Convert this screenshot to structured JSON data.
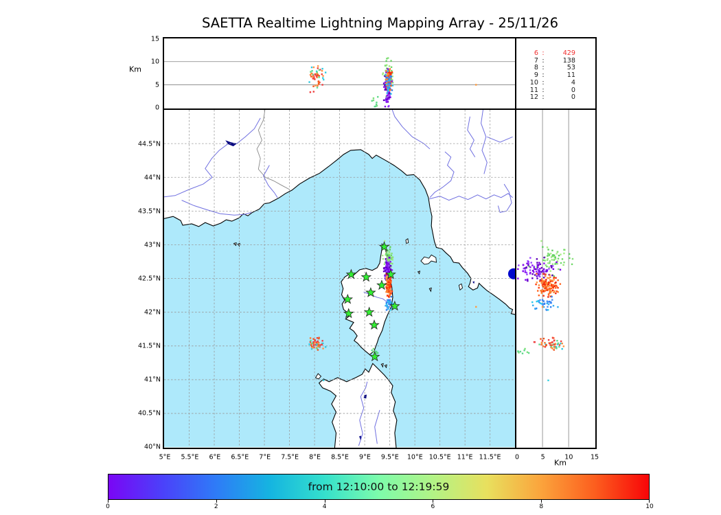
{
  "title": "SAETTA Realtime Lightning Mapping Array - 25/11/26",
  "colors": {
    "sea": "#aee9fb",
    "land": "#ffffff",
    "coastline": "#000000",
    "river": "#6f6fe0",
    "lake": "#000080",
    "country_border": "#888888",
    "grid": "#999999",
    "panel_gridline": "#808080",
    "star_fill": "#33ef33",
    "star_stroke": "#222222",
    "stats_highlight": "#f03030",
    "stats_text": "#1a1a1a",
    "edge_marker": "#0008cc"
  },
  "axes": {
    "alt_label": "Km",
    "right_alt_label": "Km",
    "alt_ticks": [
      {
        "value": 0,
        "label": "0"
      },
      {
        "value": 5,
        "label": "5"
      },
      {
        "value": 10,
        "label": "10"
      },
      {
        "value": 15,
        "label": "15"
      }
    ],
    "lon_ticks": [
      {
        "value": 5,
        "label": "5°E"
      },
      {
        "value": 5.5,
        "label": "5.5°E"
      },
      {
        "value": 6,
        "label": "6°E"
      },
      {
        "value": 6.5,
        "label": "6.5°E"
      },
      {
        "value": 7,
        "label": "7°E"
      },
      {
        "value": 7.5,
        "label": "7.5°E"
      },
      {
        "value": 8,
        "label": "8°E"
      },
      {
        "value": 8.5,
        "label": "8.5°E"
      },
      {
        "value": 9,
        "label": "9°E"
      },
      {
        "value": 9.5,
        "label": "9.5°E"
      },
      {
        "value": 10,
        "label": "10°E"
      },
      {
        "value": 10.5,
        "label": "10.5°E"
      },
      {
        "value": 11,
        "label": "11°E"
      },
      {
        "value": 11.5,
        "label": "11.5°E"
      }
    ],
    "lat_ticks": [
      {
        "value": 44.5,
        "label": "44.5°N"
      },
      {
        "value": 44,
        "label": "44°N"
      },
      {
        "value": 43.5,
        "label": "43.5°N"
      },
      {
        "value": 43,
        "label": "43°N"
      },
      {
        "value": 42.5,
        "label": "42.5°N"
      },
      {
        "value": 42,
        "label": "42°N"
      },
      {
        "value": 41.5,
        "label": "41.5°N"
      },
      {
        "value": 41,
        "label": "41°N"
      },
      {
        "value": 40.5,
        "label": "40.5°N"
      },
      {
        "value": 40,
        "label": "40°N"
      }
    ],
    "lon_range": [
      5,
      12
    ],
    "lat_range": [
      40,
      45
    ],
    "alt_range_km": [
      0,
      15
    ]
  },
  "chart_data": {
    "type": "scatter",
    "title": "SAETTA Realtime Lightning Mapping Array - 25/11/26",
    "panels": [
      "altitude(km) vs longitude",
      "sources-per-station table",
      "map lat/lon",
      "altitude(km) vs latitude",
      "time colorbar"
    ],
    "station_histogram": {
      "stations": [
        "6",
        "7",
        "8",
        "9",
        "10",
        "11",
        "12"
      ],
      "counts": [
        "429",
        "138",
        "53",
        "11",
        "4",
        "0",
        "0"
      ]
    },
    "colorbar": {
      "label": "from 12:10:00 to 12:19:59",
      "ticks": [
        "0",
        "2",
        "4",
        "6",
        "8",
        "10"
      ],
      "range": [
        0,
        10
      ],
      "gradient": [
        "#7a06f5",
        "#4b41fa",
        "#2e7cf7",
        "#15b5e0",
        "#35e0cc",
        "#7dfcab",
        "#b2f386",
        "#e8e05e",
        "#fba43c",
        "#fc5e1e",
        "#f80508"
      ]
    },
    "clusters": [
      {
        "name": "cap-corse-high-green",
        "lon": 9.47,
        "lon_sd": 0.045,
        "lat": 42.78,
        "lat_sd": 0.1,
        "alt": 7.2,
        "alt_sd": 1.9,
        "count": 65,
        "palette": [
          "#86e07a",
          "#9be87f",
          "#72d96b",
          "#aaee88",
          "#5fcf60"
        ]
      },
      {
        "name": "east-corsica-purple",
        "lon": 9.455,
        "lon_sd": 0.03,
        "lat": 42.63,
        "lat_sd": 0.085,
        "alt": 3.8,
        "alt_sd": 1.6,
        "count": 95,
        "palette": [
          "#7a00e8",
          "#8a12f2",
          "#6400c8",
          "#9640ff",
          "#5e00b8"
        ]
      },
      {
        "name": "east-corsica-red-orange",
        "lon": 9.48,
        "lon_sd": 0.028,
        "lat": 42.39,
        "lat_sd": 0.075,
        "alt": 6.0,
        "alt_sd": 1.0,
        "count": 130,
        "palette": [
          "#ff3c0c",
          "#ff6420",
          "#fa8332",
          "#f0250a",
          "#ff9a3e"
        ]
      },
      {
        "name": "east-corsica-blue",
        "lon": 9.49,
        "lon_sd": 0.03,
        "lat": 42.12,
        "lat_sd": 0.05,
        "alt": 5.4,
        "alt_sd": 0.9,
        "count": 38,
        "palette": [
          "#2f7ff2",
          "#35aef0",
          "#29c8ee",
          "#4a90f5"
        ]
      },
      {
        "name": "west-sea-storm",
        "lon": 8.05,
        "lon_sd": 0.07,
        "lat": 41.53,
        "lat_sd": 0.05,
        "alt": 6.8,
        "alt_sd": 1.4,
        "count": 55,
        "palette": [
          "#ff7a2e",
          "#f2571c",
          "#ff9440",
          "#2fc9e0",
          "#5fd98a",
          "#ef4040"
        ]
      },
      {
        "name": "bonifacio-green",
        "lon": 9.22,
        "lon_sd": 0.035,
        "lat": 41.4,
        "lat_sd": 0.025,
        "alt": 1.3,
        "alt_sd": 0.9,
        "count": 9,
        "palette": [
          "#5fd98a",
          "#7ae07a"
        ]
      }
    ],
    "singles": [
      {
        "lon": 11.22,
        "lat": 42.08,
        "alt": 5.0,
        "color": "#ff9a3e"
      },
      {
        "lon": 8.18,
        "lat": 40.99,
        "alt": 6.1,
        "color": "#35cfe0"
      }
    ],
    "edge_marker": {
      "lon": 11.97,
      "lat": 42.57,
      "radius": 8,
      "color": "#0008cc"
    },
    "lma_stations": [
      {
        "lon": 9.39,
        "lat": 42.97
      },
      {
        "lon": 8.73,
        "lat": 42.56
      },
      {
        "lon": 9.03,
        "lat": 42.52
      },
      {
        "lon": 9.52,
        "lat": 42.56
      },
      {
        "lon": 9.34,
        "lat": 42.4
      },
      {
        "lon": 9.12,
        "lat": 42.29
      },
      {
        "lon": 8.66,
        "lat": 42.19
      },
      {
        "lon": 9.6,
        "lat": 42.09
      },
      {
        "lon": 8.68,
        "lat": 41.98
      },
      {
        "lon": 9.09,
        "lat": 42.0
      },
      {
        "lon": 9.19,
        "lat": 41.81
      },
      {
        "lon": 9.2,
        "lat": 41.34
      }
    ]
  }
}
